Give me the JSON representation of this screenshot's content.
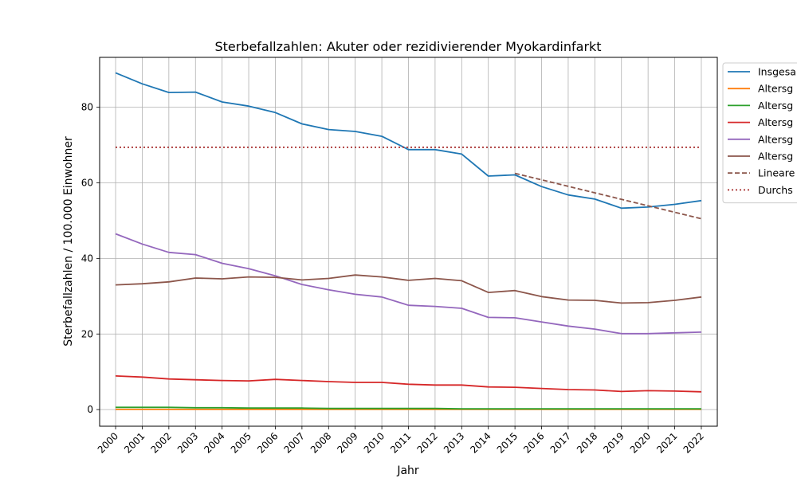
{
  "chart_data": {
    "type": "line",
    "title": "Sterbefallzahlen: Akuter oder rezidivierender Myokardinfarkt",
    "xlabel": "Jahr",
    "ylabel": "Sterbefallzahlen / 100.000 Einwohner",
    "x": [
      2000,
      2001,
      2002,
      2003,
      2004,
      2005,
      2006,
      2007,
      2008,
      2009,
      2010,
      2011,
      2012,
      2013,
      2014,
      2015,
      2016,
      2017,
      2018,
      2019,
      2020,
      2021,
      2022
    ],
    "x_tick_labels": [
      "2000",
      "2001",
      "2002",
      "2003",
      "2004",
      "2005",
      "2006",
      "2007",
      "2008",
      "2009",
      "2010",
      "2011",
      "2012",
      "2013",
      "2014",
      "2015",
      "2016",
      "2017",
      "2018",
      "2019",
      "2020",
      "2021",
      "2022"
    ],
    "xlim": [
      1999.4,
      2022.6
    ],
    "ylim": [
      -4.4,
      93.2
    ],
    "y_ticks": [
      0,
      20,
      40,
      60,
      80
    ],
    "grid": true,
    "legend_placement": "top-right (cut off at right edge)",
    "series": [
      {
        "name": "Insgesa",
        "color": "#1f77b4",
        "style": "solid",
        "values": [
          89.1,
          86.2,
          83.9,
          84.0,
          81.4,
          80.3,
          78.6,
          75.6,
          74.1,
          73.6,
          72.3,
          68.8,
          68.8,
          67.6,
          61.8,
          62.1,
          59.0,
          56.8,
          55.7,
          53.3,
          53.6,
          54.3,
          55.3
        ]
      },
      {
        "name": "Altersg",
        "color": "#ff7f0e",
        "style": "solid",
        "values": [
          0.05,
          0.05,
          0.05,
          0.05,
          0.05,
          0.05,
          0.05,
          0.05,
          0.05,
          0.05,
          0.05,
          0.05,
          0.05,
          0.05,
          0.05,
          0.05,
          0.05,
          0.05,
          0.05,
          0.05,
          0.05,
          0.05,
          0.05
        ]
      },
      {
        "name": "Altersg",
        "color": "#2ca02c",
        "style": "solid",
        "values": [
          0.6,
          0.6,
          0.6,
          0.5,
          0.5,
          0.4,
          0.4,
          0.4,
          0.3,
          0.3,
          0.3,
          0.3,
          0.3,
          0.2,
          0.2,
          0.2,
          0.2,
          0.2,
          0.2,
          0.2,
          0.2,
          0.2,
          0.2
        ]
      },
      {
        "name": "Altersg",
        "color": "#d62728",
        "style": "solid",
        "values": [
          8.9,
          8.6,
          8.1,
          7.9,
          7.7,
          7.6,
          8.0,
          7.7,
          7.4,
          7.2,
          7.2,
          6.7,
          6.5,
          6.5,
          6.0,
          5.9,
          5.6,
          5.3,
          5.2,
          4.8,
          5.0,
          4.9,
          4.7
        ]
      },
      {
        "name": "Altersg",
        "color": "#9467bd",
        "style": "solid",
        "values": [
          46.5,
          43.8,
          41.6,
          41.0,
          38.7,
          37.3,
          35.4,
          33.1,
          31.7,
          30.5,
          29.8,
          27.6,
          27.3,
          26.8,
          24.4,
          24.3,
          23.2,
          22.1,
          21.3,
          20.1,
          20.1,
          20.3,
          20.5
        ]
      },
      {
        "name": "Altersg",
        "color": "#8c564b",
        "style": "solid",
        "values": [
          33.0,
          33.3,
          33.8,
          34.8,
          34.6,
          35.1,
          35.0,
          34.3,
          34.7,
          35.6,
          35.1,
          34.2,
          34.7,
          34.1,
          31.0,
          31.5,
          29.9,
          29.0,
          28.9,
          28.2,
          28.3,
          28.9,
          29.8
        ]
      },
      {
        "name": "Lineare",
        "color": "#8c564b",
        "style": "dashed",
        "x": [
          2015,
          2022
        ],
        "values": [
          62.5,
          50.5
        ]
      },
      {
        "name": "Durchs",
        "color": "#a52a2a",
        "style": "dotted",
        "x": [
          2000,
          2022
        ],
        "values": [
          69.4,
          69.4
        ]
      }
    ]
  }
}
